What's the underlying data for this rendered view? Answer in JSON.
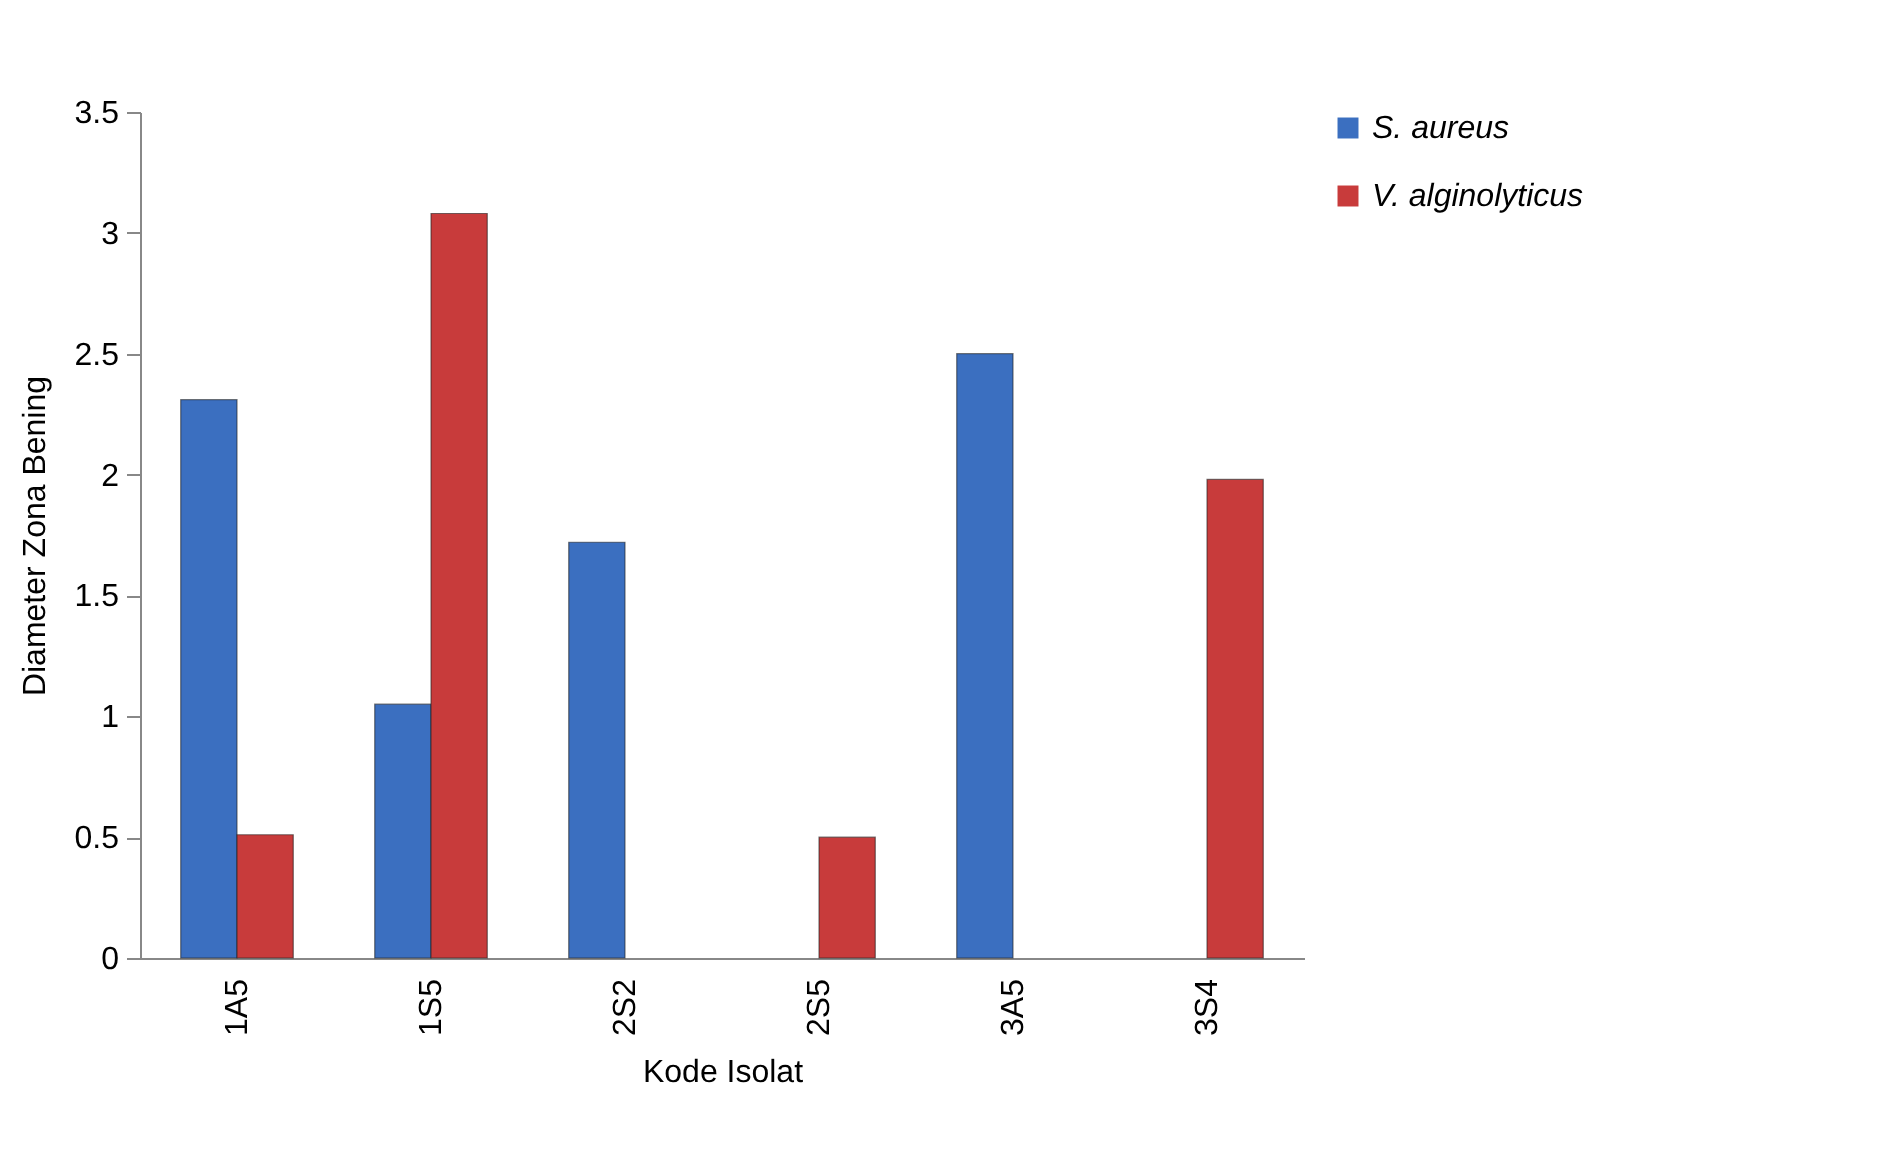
{
  "chart_data": {
    "type": "bar",
    "xlabel": "Kode Isolat",
    "ylabel": "Diameter Zona Bening",
    "categories": [
      "1A5",
      "1S5",
      "2S2",
      "2S5",
      "3A5",
      "3S4"
    ],
    "series": [
      {
        "name": "S. aureus",
        "color": "#3b6fc0",
        "values": [
          2.31,
          1.05,
          1.72,
          null,
          2.5,
          null
        ]
      },
      {
        "name": "V. alginolyticus",
        "color": "#c83b3b",
        "values": [
          0.51,
          3.08,
          null,
          0.5,
          null,
          1.98
        ]
      }
    ],
    "ylim": [
      0,
      3.5
    ],
    "yticks": [
      0,
      0.5,
      1,
      1.5,
      2,
      2.5,
      3,
      3.5
    ],
    "grid": false,
    "legend": "right"
  }
}
